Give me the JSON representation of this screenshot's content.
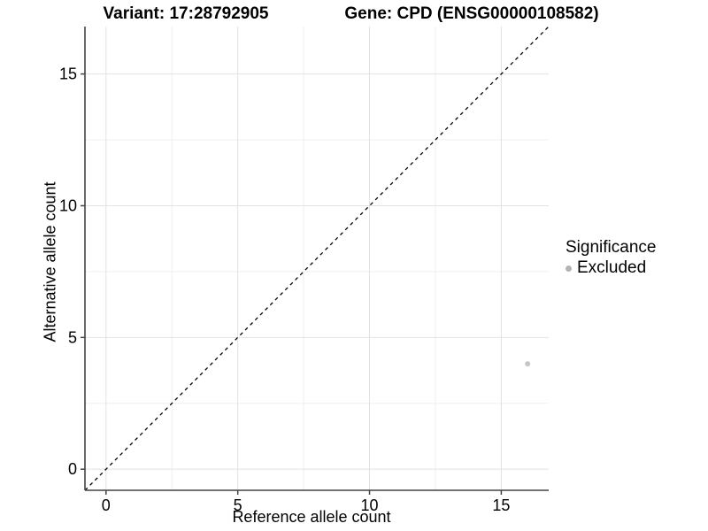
{
  "chart_data": {
    "type": "scatter",
    "title_left": "Variant: 17:28792905",
    "title_right": "Gene: CPD (ENSG00000108582)",
    "xlabel": "Reference allele count",
    "ylabel": "Alternative allele count",
    "xlim": [
      -0.8,
      16.8
    ],
    "ylim": [
      -0.8,
      16.8
    ],
    "x_ticks": [
      0,
      5,
      10,
      15
    ],
    "y_ticks": [
      0,
      5,
      10,
      15
    ],
    "x_minor_gridlines": [
      2.5,
      7.5,
      12.5
    ],
    "y_minor_gridlines": [
      2.5,
      7.5,
      12.5
    ],
    "grid": "major+minor",
    "reference_line": {
      "slope": 1,
      "intercept": 0,
      "style": "dashed",
      "color": "#000000"
    },
    "series": [
      {
        "name": "Excluded",
        "color": "#c6c6c6",
        "points": [
          [
            16,
            4
          ]
        ]
      }
    ],
    "legend": {
      "position": "right",
      "title": "Significance",
      "items": [
        {
          "label": "Excluded",
          "color": "#b3b3b3"
        }
      ]
    },
    "colors": {
      "background": "#ffffff",
      "grid_major": "#e2e2e2",
      "grid_minor": "#efefef",
      "axis_line": "#444444",
      "tick_mark": "#444444",
      "text": "#000000"
    }
  }
}
